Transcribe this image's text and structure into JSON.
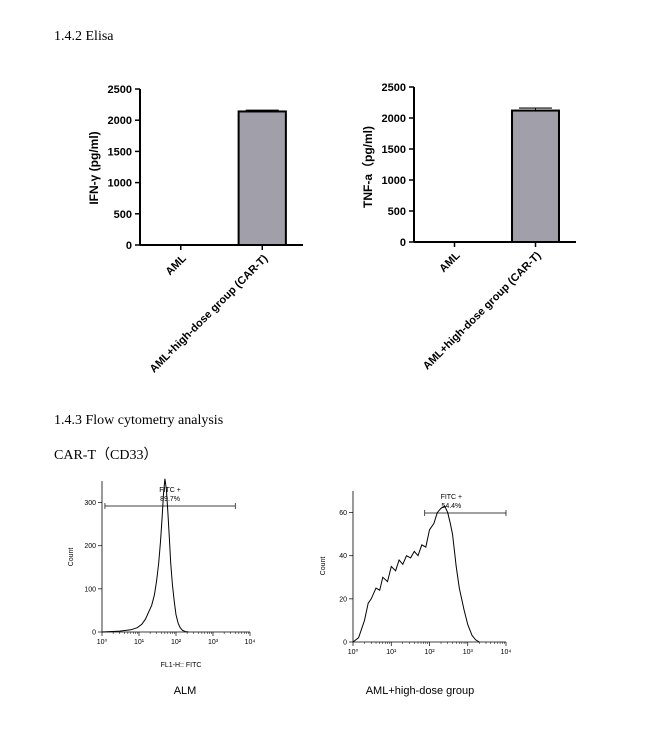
{
  "sections": {
    "elisa_heading": "1.4.2 Elisa",
    "flow_heading": "1.4.3 Flow cytometry analysis",
    "car_heading": "CAR-T（CD33）"
  },
  "colors": {
    "bar_fill": "#a19fa9",
    "ink": "#000000"
  },
  "chart_data": [
    {
      "type": "bar",
      "categories": [
        "AML",
        "AML+high-dose group (CAR-T)"
      ],
      "values": [
        0,
        2140
      ],
      "error": [
        0,
        20
      ],
      "ylabel": "IFN-γ (pg/ml)",
      "ylim": [
        0,
        2500
      ],
      "yticks": [
        0,
        500,
        1000,
        1500,
        2000,
        2500
      ]
    },
    {
      "type": "bar",
      "categories": [
        "AML",
        "AML+high-dose group (CAR-T)"
      ],
      "values": [
        0,
        2120
      ],
      "error": [
        0,
        40
      ],
      "ylabel": "TNF-a（pg/ml)",
      "ylim": [
        0,
        2500
      ],
      "yticks": [
        0,
        500,
        1000,
        1500,
        2000,
        2500
      ]
    },
    {
      "type": "line",
      "chart_subtype": "flow-cytometry histogram",
      "xscale": "log",
      "xlim": [
        1,
        10000
      ],
      "xtick_labels": [
        "10⁰",
        "10¹",
        "10²",
        "10³",
        "10⁴"
      ],
      "xlabel": "FL1-H:: FITC",
      "ylabel": "Count",
      "ylim": [
        0,
        350
      ],
      "yticks": [
        0,
        100,
        200,
        300
      ],
      "gate": {
        "label": "FITC +",
        "percent": "89.7%",
        "from": 1.2,
        "to": 4000
      },
      "caption": "ALM",
      "x": [
        1,
        3,
        6,
        9,
        12,
        15,
        18,
        22,
        26,
        30,
        34,
        38,
        42,
        46,
        50,
        55,
        60,
        66,
        72,
        80,
        90,
        100,
        115,
        130,
        150,
        180,
        220
      ],
      "y": [
        0,
        2,
        5,
        10,
        18,
        30,
        45,
        62,
        86,
        120,
        160,
        210,
        265,
        320,
        355,
        330,
        280,
        220,
        160,
        110,
        70,
        40,
        20,
        10,
        4,
        1,
        0
      ]
    },
    {
      "type": "line",
      "chart_subtype": "flow-cytometry histogram",
      "xscale": "log",
      "xlim": [
        1,
        10000
      ],
      "xtick_labels": [
        "10⁰",
        "10¹",
        "10²",
        "10³",
        "10⁴"
      ],
      "ylabel": "Count",
      "ylim": [
        0,
        70
      ],
      "yticks": [
        0,
        20,
        40,
        60
      ],
      "gate": {
        "label": "FITC +",
        "percent": "54.4%",
        "from": 75,
        "to": 10000
      },
      "caption": "AML+high-dose group",
      "x": [
        1,
        1.4,
        2,
        2.5,
        3,
        4,
        5,
        6,
        8,
        10,
        13,
        16,
        20,
        25,
        32,
        40,
        50,
        63,
        80,
        100,
        130,
        160,
        200,
        250,
        300,
        350,
        400,
        450,
        500,
        600,
        800,
        1000,
        1300,
        1600,
        2000
      ],
      "y": [
        0,
        2,
        10,
        18,
        20,
        25,
        24,
        30,
        28,
        35,
        33,
        38,
        36,
        40,
        39,
        42,
        40,
        45,
        44,
        52,
        55,
        60,
        62,
        63,
        60,
        55,
        50,
        42,
        35,
        25,
        15,
        8,
        3,
        1,
        0
      ]
    }
  ]
}
